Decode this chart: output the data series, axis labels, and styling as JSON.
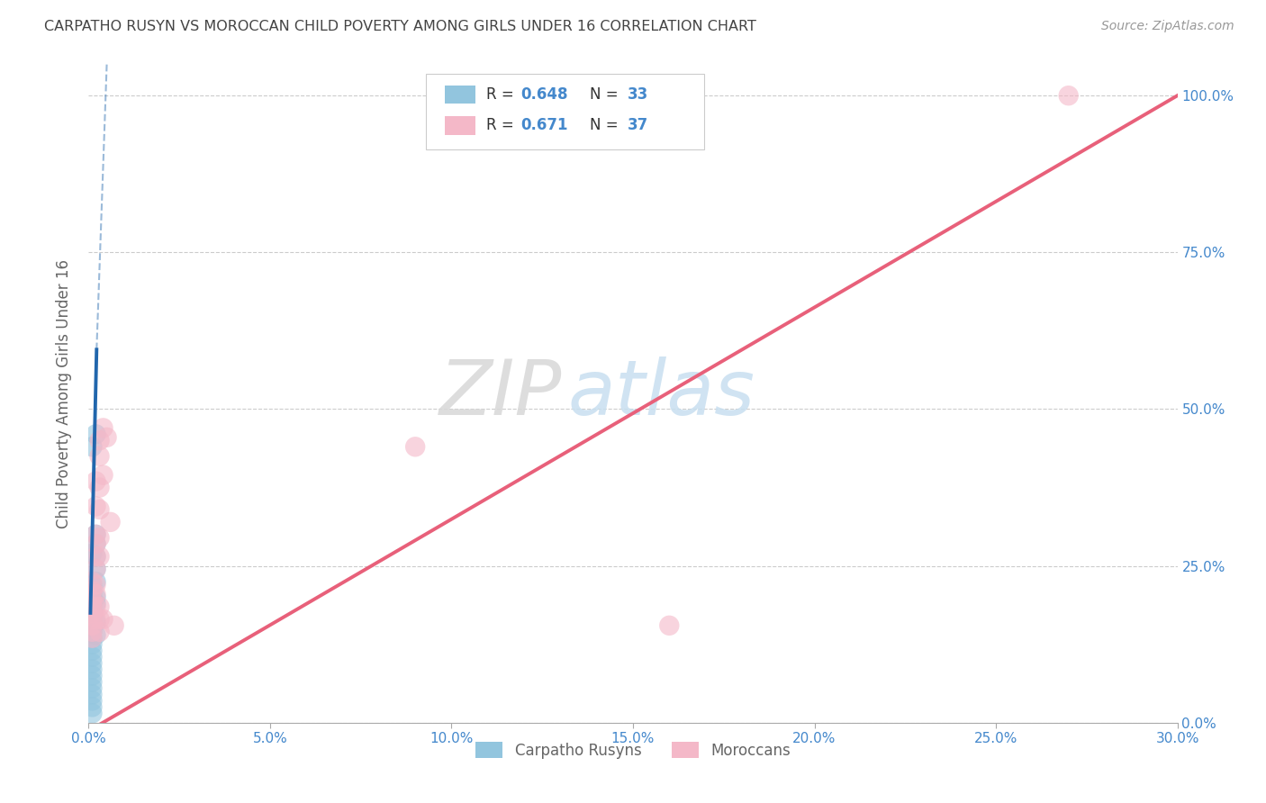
{
  "title": "CARPATHO RUSYN VS MOROCCAN CHILD POVERTY AMONG GIRLS UNDER 16 CORRELATION CHART",
  "source": "Source: ZipAtlas.com",
  "ylabel": "Child Poverty Among Girls Under 16",
  "watermark_zip": "ZIP",
  "watermark_atlas": "atlas",
  "xmin": 0.0,
  "xmax": 0.3,
  "ymin": 0.0,
  "ymax": 1.05,
  "xtick_vals": [
    0.0,
    0.05,
    0.1,
    0.15,
    0.2,
    0.25,
    0.3
  ],
  "ytick_vals": [
    0.0,
    0.25,
    0.5,
    0.75,
    1.0
  ],
  "blue_R": "0.648",
  "blue_N": "33",
  "pink_R": "0.671",
  "pink_N": "37",
  "blue_color": "#92c5de",
  "pink_color": "#f4b8c8",
  "blue_line_color": "#2166ac",
  "pink_line_color": "#e8607a",
  "blue_scatter": [
    [
      0.001,
      0.44
    ],
    [
      0.001,
      0.27
    ],
    [
      0.001,
      0.22
    ],
    [
      0.001,
      0.205
    ],
    [
      0.001,
      0.195
    ],
    [
      0.001,
      0.185
    ],
    [
      0.001,
      0.175
    ],
    [
      0.001,
      0.165
    ],
    [
      0.001,
      0.155
    ],
    [
      0.001,
      0.145
    ],
    [
      0.001,
      0.135
    ],
    [
      0.001,
      0.125
    ],
    [
      0.001,
      0.115
    ],
    [
      0.001,
      0.105
    ],
    [
      0.001,
      0.095
    ],
    [
      0.001,
      0.085
    ],
    [
      0.001,
      0.075
    ],
    [
      0.001,
      0.065
    ],
    [
      0.001,
      0.055
    ],
    [
      0.001,
      0.045
    ],
    [
      0.001,
      0.035
    ],
    [
      0.001,
      0.025
    ],
    [
      0.001,
      0.015
    ],
    [
      0.002,
      0.46
    ],
    [
      0.002,
      0.3
    ],
    [
      0.002,
      0.285
    ],
    [
      0.002,
      0.265
    ],
    [
      0.002,
      0.245
    ],
    [
      0.002,
      0.225
    ],
    [
      0.002,
      0.2
    ],
    [
      0.002,
      0.19
    ],
    [
      0.002,
      0.16
    ],
    [
      0.002,
      0.14
    ]
  ],
  "pink_scatter": [
    [
      0.001,
      0.225
    ],
    [
      0.001,
      0.21
    ],
    [
      0.001,
      0.195
    ],
    [
      0.001,
      0.185
    ],
    [
      0.001,
      0.175
    ],
    [
      0.001,
      0.165
    ],
    [
      0.001,
      0.155
    ],
    [
      0.001,
      0.145
    ],
    [
      0.001,
      0.135
    ],
    [
      0.002,
      0.385
    ],
    [
      0.002,
      0.345
    ],
    [
      0.002,
      0.3
    ],
    [
      0.002,
      0.285
    ],
    [
      0.002,
      0.265
    ],
    [
      0.002,
      0.245
    ],
    [
      0.002,
      0.22
    ],
    [
      0.002,
      0.205
    ],
    [
      0.002,
      0.185
    ],
    [
      0.002,
      0.165
    ],
    [
      0.003,
      0.45
    ],
    [
      0.003,
      0.425
    ],
    [
      0.003,
      0.375
    ],
    [
      0.003,
      0.34
    ],
    [
      0.003,
      0.295
    ],
    [
      0.003,
      0.265
    ],
    [
      0.003,
      0.185
    ],
    [
      0.003,
      0.165
    ],
    [
      0.003,
      0.145
    ],
    [
      0.004,
      0.47
    ],
    [
      0.004,
      0.395
    ],
    [
      0.004,
      0.165
    ],
    [
      0.005,
      0.455
    ],
    [
      0.006,
      0.32
    ],
    [
      0.007,
      0.155
    ],
    [
      0.09,
      0.44
    ],
    [
      0.16,
      0.155
    ],
    [
      0.27,
      1.0
    ]
  ],
  "blue_line_solid": [
    [
      0.0005,
      0.175
    ],
    [
      0.0022,
      0.595
    ]
  ],
  "blue_line_dashed": [
    [
      0.0022,
      0.595
    ],
    [
      0.005,
      1.05
    ]
  ],
  "pink_line": [
    [
      -0.005,
      -0.03
    ],
    [
      0.3,
      1.0
    ]
  ],
  "background_color": "#ffffff",
  "grid_color": "#cccccc",
  "axis_color": "#aaaaaa",
  "title_color": "#444444",
  "label_color": "#666666",
  "tick_color": "#4488cc",
  "legend_label_color": "#333333"
}
